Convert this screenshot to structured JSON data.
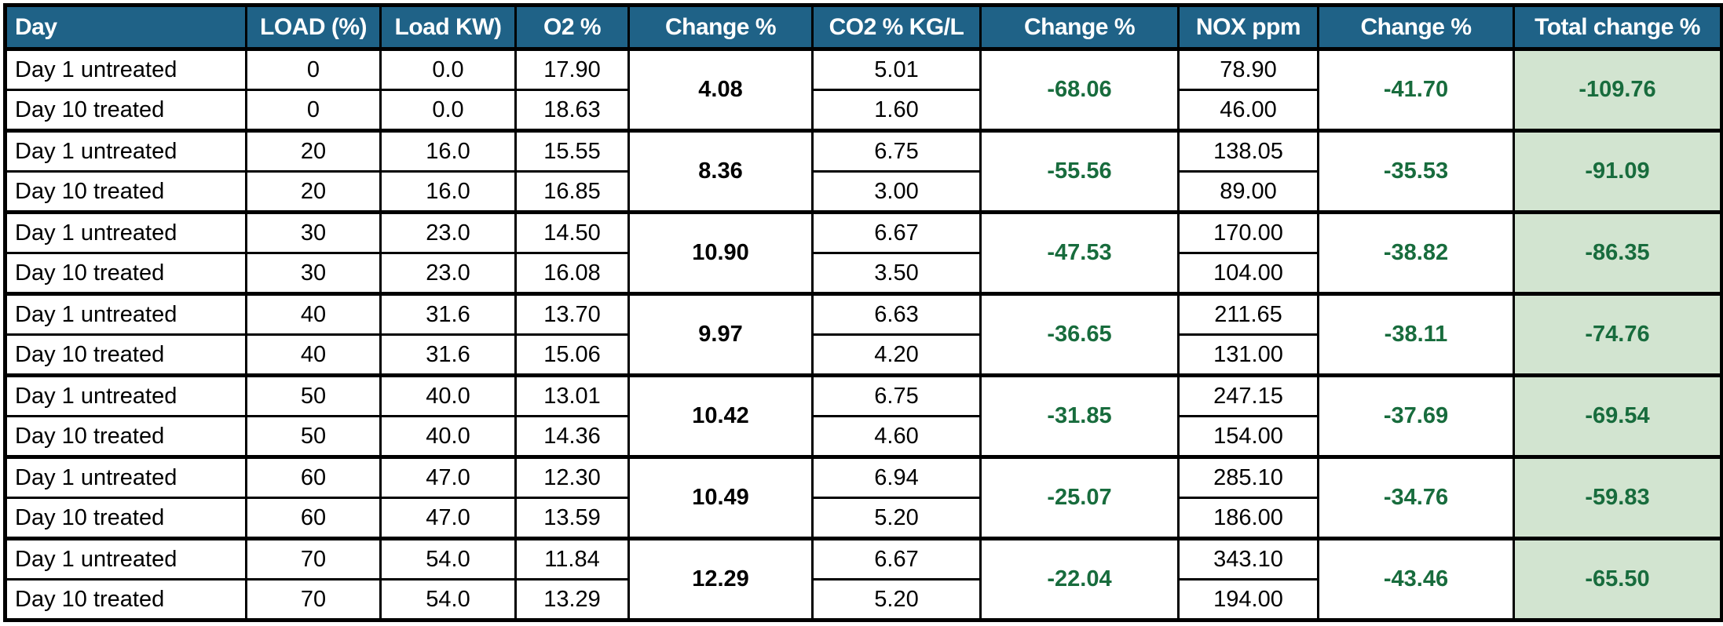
{
  "chart_data": {
    "type": "table",
    "columns": [
      "Day",
      "LOAD (%)",
      "Load KW)",
      "O2 %",
      "Change %",
      "CO2 % KG/L",
      "Change %",
      "NOX ppm",
      "Change %",
      "Total change %"
    ],
    "groups": [
      {
        "r1": {
          "day": "Day 1 untreated",
          "load": "0",
          "kw": "0.0",
          "o2": "17.90",
          "co2": "5.01",
          "nox": "78.90"
        },
        "r2": {
          "day": "Day 10 treated",
          "load": "0",
          "kw": "0.0",
          "o2": "18.63",
          "co2": "1.60",
          "nox": "46.00"
        },
        "o2_change": "4.08",
        "co2_change": "-68.06",
        "nox_change": "-41.70",
        "total_change": "-109.76"
      },
      {
        "r1": {
          "day": "Day 1 untreated",
          "load": "20",
          "kw": "16.0",
          "o2": "15.55",
          "co2": "6.75",
          "nox": "138.05"
        },
        "r2": {
          "day": "Day 10 treated",
          "load": "20",
          "kw": "16.0",
          "o2": "16.85",
          "co2": "3.00",
          "nox": "89.00"
        },
        "o2_change": "8.36",
        "co2_change": "-55.56",
        "nox_change": "-35.53",
        "total_change": "-91.09"
      },
      {
        "r1": {
          "day": "Day 1 untreated",
          "load": "30",
          "kw": "23.0",
          "o2": "14.50",
          "co2": "6.67",
          "nox": "170.00"
        },
        "r2": {
          "day": "Day 10 treated",
          "load": "30",
          "kw": "23.0",
          "o2": "16.08",
          "co2": "3.50",
          "nox": "104.00"
        },
        "o2_change": "10.90",
        "co2_change": "-47.53",
        "nox_change": "-38.82",
        "total_change": "-86.35"
      },
      {
        "r1": {
          "day": "Day 1 untreated",
          "load": "40",
          "kw": "31.6",
          "o2": "13.70",
          "co2": "6.63",
          "nox": "211.65"
        },
        "r2": {
          "day": "Day 10 treated",
          "load": "40",
          "kw": "31.6",
          "o2": "15.06",
          "co2": "4.20",
          "nox": "131.00"
        },
        "o2_change": "9.97",
        "co2_change": "-36.65",
        "nox_change": "-38.11",
        "total_change": "-74.76"
      },
      {
        "r1": {
          "day": "Day 1 untreated",
          "load": "50",
          "kw": "40.0",
          "o2": "13.01",
          "co2": "6.75",
          "nox": "247.15"
        },
        "r2": {
          "day": "Day 10 treated",
          "load": "50",
          "kw": "40.0",
          "o2": "14.36",
          "co2": "4.60",
          "nox": "154.00"
        },
        "o2_change": "10.42",
        "co2_change": "-31.85",
        "nox_change": "-37.69",
        "total_change": "-69.54"
      },
      {
        "r1": {
          "day": "Day 1 untreated",
          "load": "60",
          "kw": "47.0",
          "o2": "12.30",
          "co2": "6.94",
          "nox": "285.10"
        },
        "r2": {
          "day": "Day 10 treated",
          "load": "60",
          "kw": "47.0",
          "o2": "13.59",
          "co2": "5.20",
          "nox": "186.00"
        },
        "o2_change": "10.49",
        "co2_change": "-25.07",
        "nox_change": "-34.76",
        "total_change": "-59.83"
      },
      {
        "r1": {
          "day": "Day 1 untreated",
          "load": "70",
          "kw": "54.0",
          "o2": "11.84",
          "co2": "6.67",
          "nox": "343.10"
        },
        "r2": {
          "day": "Day 10 treated",
          "load": "70",
          "kw": "54.0",
          "o2": "13.29",
          "co2": "5.20",
          "nox": "194.00"
        },
        "o2_change": "12.29",
        "co2_change": "-22.04",
        "nox_change": "-43.46",
        "total_change": "-65.50"
      }
    ]
  },
  "colors": {
    "header_bg": "#1F6287",
    "header_text": "#FFFFFF",
    "change_green": "#186C3D",
    "total_fill": "#D2E4D0",
    "grid": "#000000"
  }
}
